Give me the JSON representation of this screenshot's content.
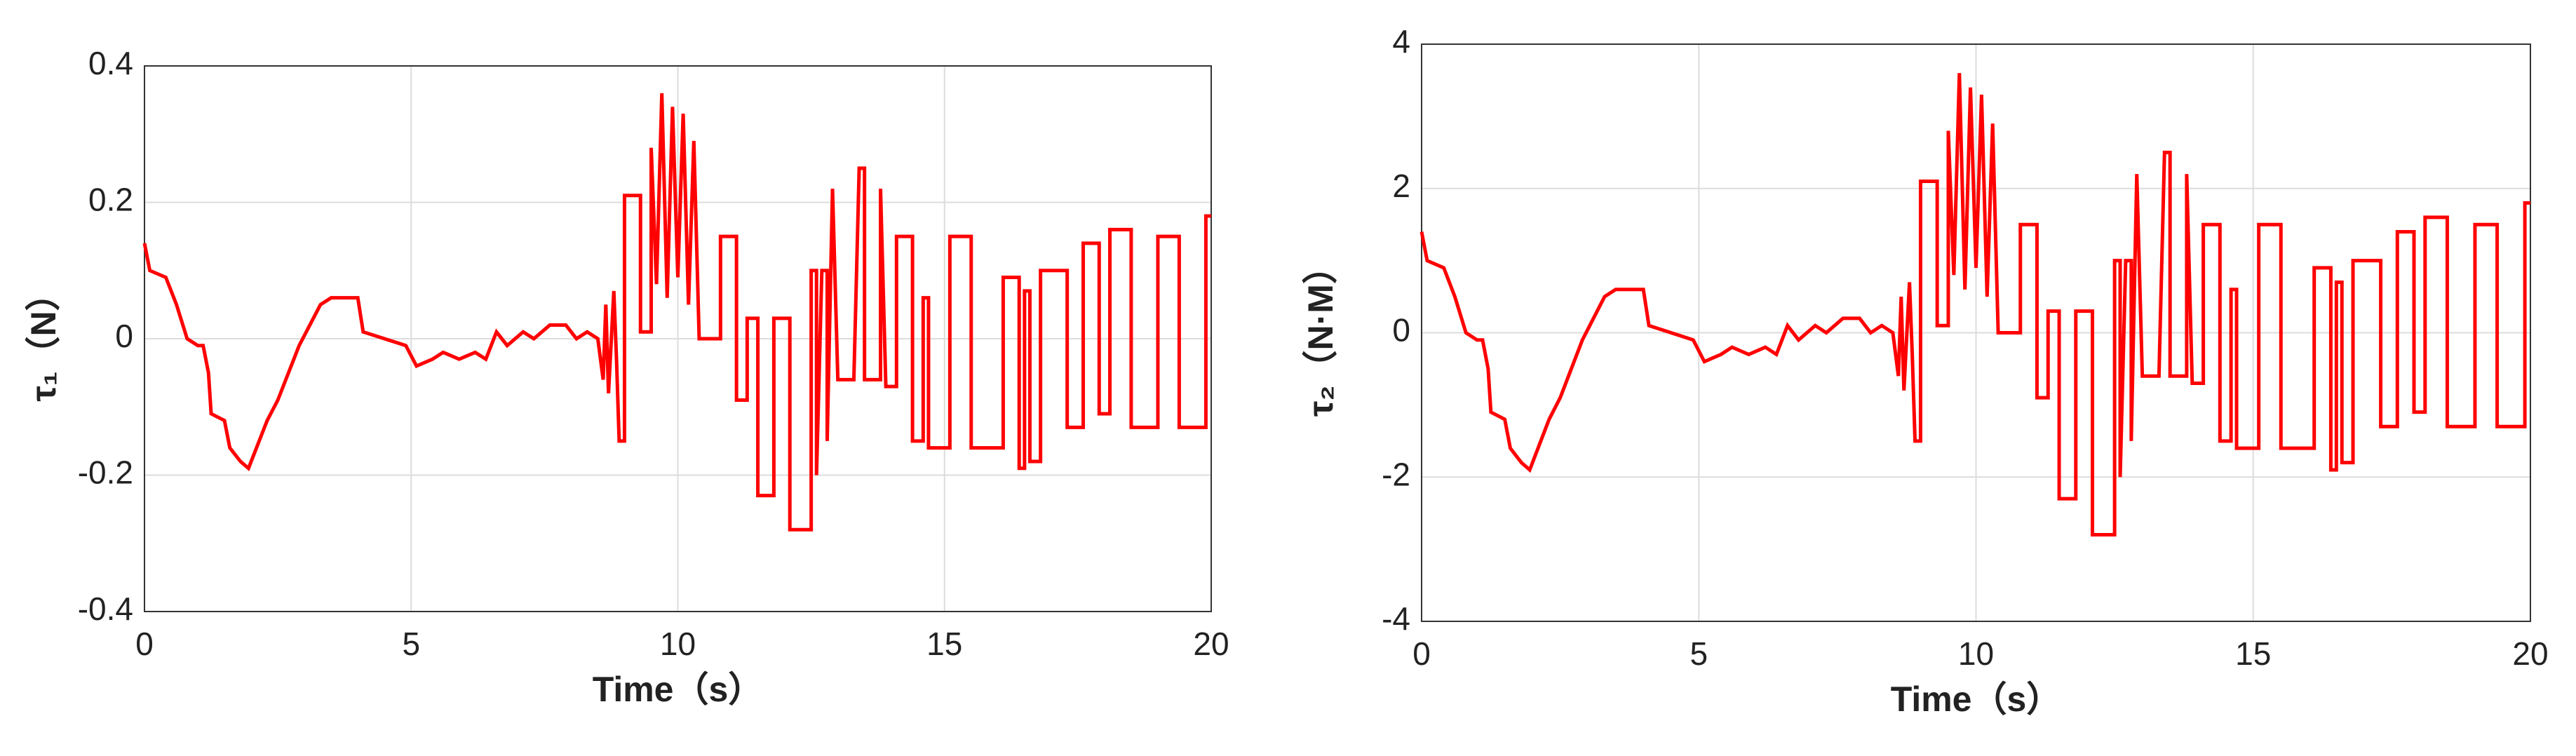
{
  "chart_data": [
    {
      "type": "line",
      "ylabel": "τ₁（N）",
      "xlabel": "Time（s）",
      "color": "#ff0000",
      "xlim": [
        0,
        20
      ],
      "xticks": [
        0,
        5,
        10,
        15,
        20
      ],
      "ylim": [
        -0.4,
        0.4
      ],
      "yticks": [
        -0.4,
        -0.2,
        0,
        0.2,
        0.4
      ],
      "grid": true,
      "x": [
        0,
        0.1,
        0.4,
        0.6,
        0.8,
        1.0,
        1.1,
        1.2,
        1.25,
        1.5,
        1.6,
        1.8,
        1.95,
        2.1,
        2.3,
        2.5,
        2.7,
        2.9,
        3.1,
        3.3,
        3.5,
        4.0,
        4.1,
        4.5,
        4.9,
        5.1,
        5.4,
        5.6,
        5.9,
        6.2,
        6.4,
        6.6,
        6.8,
        7.1,
        7.3,
        7.6,
        7.9,
        8.1,
        8.3,
        8.5,
        8.6,
        8.65,
        8.7,
        8.8,
        8.85,
        8.9,
        9.0,
        9.0,
        9.3,
        9.3,
        9.5,
        9.5,
        9.6,
        9.7,
        9.8,
        9.9,
        10.0,
        10.1,
        10.2,
        10.3,
        10.4,
        10.8,
        10.8,
        11.1,
        11.1,
        11.3,
        11.3,
        11.5,
        11.5,
        11.8,
        11.8,
        12.1,
        12.1,
        12.5,
        12.5,
        12.6,
        12.6,
        12.7,
        12.8,
        12.8,
        12.9,
        13.0,
        13.3,
        13.4,
        13.5,
        13.5,
        13.8,
        13.8,
        13.9,
        14.1,
        14.1,
        14.4,
        14.4,
        14.6,
        14.6,
        14.7,
        14.7,
        15.1,
        15.1,
        15.5,
        15.5,
        16.1,
        16.1,
        16.4,
        16.4,
        16.5,
        16.5,
        16.6,
        16.6,
        16.8,
        16.8,
        17.3,
        17.3,
        17.6,
        17.6,
        17.9,
        17.9,
        18.1,
        18.1,
        18.5,
        18.5,
        19.0,
        19.0,
        19.4,
        19.4,
        19.9,
        19.9,
        20.0
      ],
      "values": [
        0.14,
        0.1,
        0.09,
        0.05,
        0.0,
        -0.01,
        -0.01,
        -0.05,
        -0.11,
        -0.12,
        -0.16,
        -0.18,
        -0.19,
        -0.16,
        -0.12,
        -0.09,
        -0.05,
        -0.01,
        0.02,
        0.05,
        0.06,
        0.06,
        0.01,
        0.0,
        -0.01,
        -0.04,
        -0.03,
        -0.02,
        -0.03,
        -0.02,
        -0.03,
        0.01,
        -0.01,
        0.01,
        0.0,
        0.02,
        0.02,
        0.0,
        0.01,
        0.0,
        -0.06,
        0.05,
        -0.08,
        0.07,
        -0.03,
        -0.15,
        -0.15,
        0.21,
        0.21,
        0.01,
        0.01,
        0.28,
        0.08,
        0.36,
        0.06,
        0.34,
        0.09,
        0.33,
        0.05,
        0.29,
        0.0,
        0.0,
        0.15,
        0.15,
        -0.09,
        -0.09,
        0.03,
        0.03,
        -0.23,
        -0.23,
        0.03,
        0.03,
        -0.28,
        -0.28,
        0.1,
        0.1,
        -0.2,
        0.1,
        0.1,
        -0.15,
        0.22,
        -0.06,
        -0.06,
        0.25,
        0.25,
        -0.06,
        -0.06,
        0.22,
        -0.07,
        -0.07,
        0.15,
        0.15,
        -0.15,
        -0.15,
        0.06,
        0.06,
        -0.16,
        -0.16,
        0.15,
        0.15,
        -0.16,
        -0.16,
        0.09,
        0.09,
        -0.19,
        -0.19,
        0.07,
        0.07,
        -0.18,
        -0.18,
        0.1,
        0.1,
        -0.13,
        -0.13,
        0.14,
        0.14,
        -0.11,
        -0.11,
        0.16,
        0.16,
        -0.13,
        -0.13,
        0.15,
        0.15,
        -0.13,
        -0.13,
        0.18,
        0.18
      ]
    },
    {
      "type": "line",
      "ylabel": "τ₂（N·M）",
      "xlabel": "Time（s）",
      "color": "#ff0000",
      "xlim": [
        0,
        20
      ],
      "xticks": [
        0,
        5,
        10,
        15,
        20
      ],
      "ylim": [
        -4,
        4
      ],
      "yticks": [
        -4,
        -2,
        0,
        2,
        4
      ],
      "grid": true,
      "x": [
        0,
        0.1,
        0.4,
        0.6,
        0.8,
        1.0,
        1.1,
        1.2,
        1.25,
        1.5,
        1.6,
        1.8,
        1.95,
        2.1,
        2.3,
        2.5,
        2.7,
        2.9,
        3.1,
        3.3,
        3.5,
        4.0,
        4.1,
        4.5,
        4.9,
        5.1,
        5.4,
        5.6,
        5.9,
        6.2,
        6.4,
        6.6,
        6.8,
        7.1,
        7.3,
        7.6,
        7.9,
        8.1,
        8.3,
        8.5,
        8.6,
        8.65,
        8.7,
        8.8,
        8.85,
        8.9,
        9.0,
        9.0,
        9.3,
        9.3,
        9.5,
        9.5,
        9.6,
        9.7,
        9.8,
        9.9,
        10.0,
        10.1,
        10.2,
        10.3,
        10.4,
        10.8,
        10.8,
        11.1,
        11.1,
        11.3,
        11.3,
        11.5,
        11.5,
        11.8,
        11.8,
        12.1,
        12.1,
        12.5,
        12.5,
        12.6,
        12.6,
        12.7,
        12.8,
        12.8,
        12.9,
        13.0,
        13.3,
        13.4,
        13.5,
        13.5,
        13.8,
        13.8,
        13.9,
        14.1,
        14.1,
        14.4,
        14.4,
        14.6,
        14.6,
        14.7,
        14.7,
        15.1,
        15.1,
        15.5,
        15.5,
        16.1,
        16.1,
        16.4,
        16.4,
        16.5,
        16.5,
        16.6,
        16.6,
        16.8,
        16.8,
        17.3,
        17.3,
        17.6,
        17.6,
        17.9,
        17.9,
        18.1,
        18.1,
        18.5,
        18.5,
        19.0,
        19.0,
        19.4,
        19.4,
        19.9,
        19.9,
        20.0
      ],
      "values": [
        1.4,
        1.0,
        0.9,
        0.5,
        0.0,
        -0.1,
        -0.1,
        -0.5,
        -1.1,
        -1.2,
        -1.6,
        -1.8,
        -1.9,
        -1.6,
        -1.2,
        -0.9,
        -0.5,
        -0.1,
        0.2,
        0.5,
        0.6,
        0.6,
        0.1,
        0.0,
        -0.1,
        -0.4,
        -0.3,
        -0.2,
        -0.3,
        -0.2,
        -0.3,
        0.1,
        -0.1,
        0.1,
        0.0,
        0.2,
        0.2,
        0.0,
        0.1,
        0.0,
        -0.6,
        0.5,
        -0.8,
        0.7,
        -0.3,
        -1.5,
        -1.5,
        2.1,
        2.1,
        0.1,
        0.1,
        2.8,
        0.8,
        3.6,
        0.6,
        3.4,
        0.9,
        3.3,
        0.5,
        2.9,
        0.0,
        0.0,
        1.5,
        1.5,
        -0.9,
        -0.9,
        0.3,
        0.3,
        -2.3,
        -2.3,
        0.3,
        0.3,
        -2.8,
        -2.8,
        1.0,
        1.0,
        -2.0,
        1.0,
        1.0,
        -1.5,
        2.2,
        -0.6,
        -0.6,
        2.5,
        2.5,
        -0.6,
        -0.6,
        2.2,
        -0.7,
        -0.7,
        1.5,
        1.5,
        -1.5,
        -1.5,
        0.6,
        0.6,
        -1.6,
        -1.6,
        1.5,
        1.5,
        -1.6,
        -1.6,
        0.9,
        0.9,
        -1.9,
        -1.9,
        0.7,
        0.7,
        -1.8,
        -1.8,
        1.0,
        1.0,
        -1.3,
        -1.3,
        1.4,
        1.4,
        -1.1,
        -1.1,
        1.6,
        1.6,
        -1.3,
        -1.3,
        1.5,
        1.5,
        -1.3,
        -1.3,
        1.8,
        1.8
      ]
    }
  ]
}
